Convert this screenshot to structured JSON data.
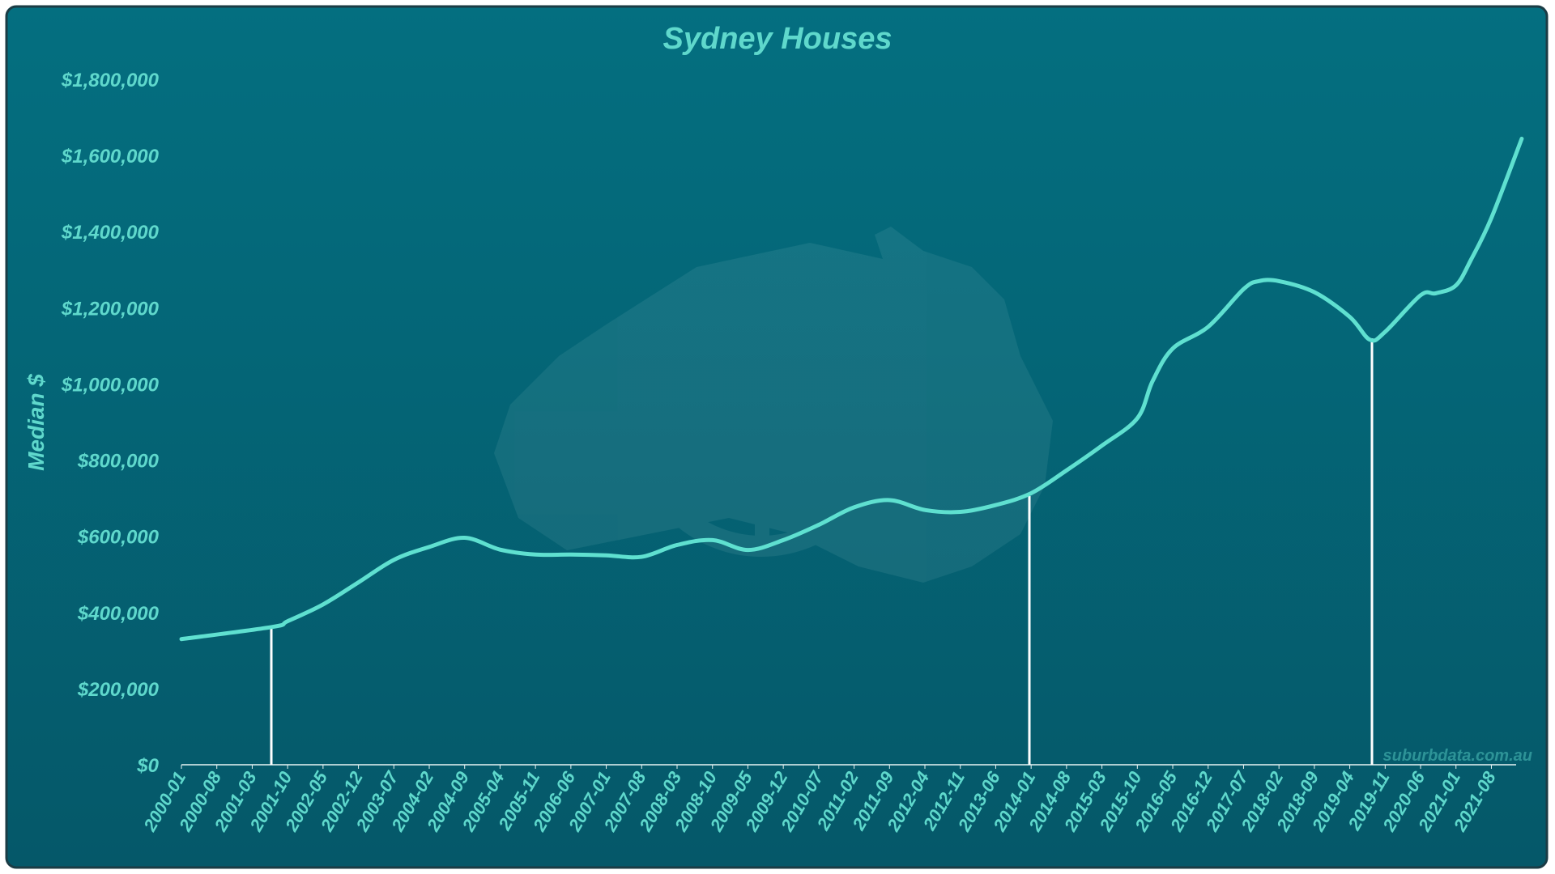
{
  "chart_data": {
    "type": "line",
    "title": "Sydney Houses",
    "y_label": "Median $",
    "watermark": "suburbdata.com.au",
    "x": [
      "2000-01",
      "2001-07",
      "2001-10",
      "2002-05",
      "2002-12",
      "2003-07",
      "2004-02",
      "2004-09",
      "2005-04",
      "2005-11",
      "2006-06",
      "2007-01",
      "2007-08",
      "2008-03",
      "2008-10",
      "2009-05",
      "2009-12",
      "2010-07",
      "2011-02",
      "2011-09",
      "2012-04",
      "2012-11",
      "2013-06",
      "2014-01",
      "2014-08",
      "2015-03",
      "2015-10",
      "2016-01",
      "2016-05",
      "2016-12",
      "2017-07",
      "2017-10",
      "2018-02",
      "2018-09",
      "2019-04",
      "2019-08",
      "2019-11",
      "2020-06",
      "2020-09",
      "2021-01",
      "2021-04",
      "2021-08",
      "2022-02"
    ],
    "series": [
      {
        "name": "Median",
        "color": "#5fe0d0",
        "values": [
          330000,
          362000,
          377000,
          421000,
          479000,
          538000,
          572000,
          596000,
          565000,
          552000,
          552000,
          550000,
          546000,
          577000,
          590000,
          564000,
          590000,
          630000,
          676000,
          695000,
          669000,
          664000,
          682000,
          713000,
          773000,
          838000,
          910000,
          1007000,
          1093000,
          1150000,
          1249000,
          1270000,
          1270000,
          1241000,
          1176000,
          1116000,
          1137000,
          1233000,
          1238000,
          1259000,
          1327000,
          1436000,
          1644000
        ]
      }
    ],
    "xticks": [
      "2000-01",
      "2000-08",
      "2001-03",
      "2001-10",
      "2002-05",
      "2002-12",
      "2003-07",
      "2004-02",
      "2004-09",
      "2005-04",
      "2005-11",
      "2006-06",
      "2007-01",
      "2007-08",
      "2008-03",
      "2008-10",
      "2009-05",
      "2009-12",
      "2010-07",
      "2011-02",
      "2011-09",
      "2012-04",
      "2012-11",
      "2013-06",
      "2014-01",
      "2014-08",
      "2015-03",
      "2015-10",
      "2016-05",
      "2016-12",
      "2017-07",
      "2018-02",
      "2018-09",
      "2019-04",
      "2019-11",
      "2020-06",
      "2021-01",
      "2021-08"
    ],
    "ylim": [
      0,
      1800000
    ],
    "yticks": [
      {
        "value": 0,
        "label": "$0"
      },
      {
        "value": 200000,
        "label": "$200,000"
      },
      {
        "value": 400000,
        "label": "$400,000"
      },
      {
        "value": 600000,
        "label": "$600,000"
      },
      {
        "value": 800000,
        "label": "$800,000"
      },
      {
        "value": 1000000,
        "label": "$1,000,000"
      },
      {
        "value": 1200000,
        "label": "$1,200,000"
      },
      {
        "value": 1400000,
        "label": "$1,400,000"
      },
      {
        "value": 1600000,
        "label": "$1,600,000"
      },
      {
        "value": 1800000,
        "label": "$1,800,000"
      }
    ]
  }
}
